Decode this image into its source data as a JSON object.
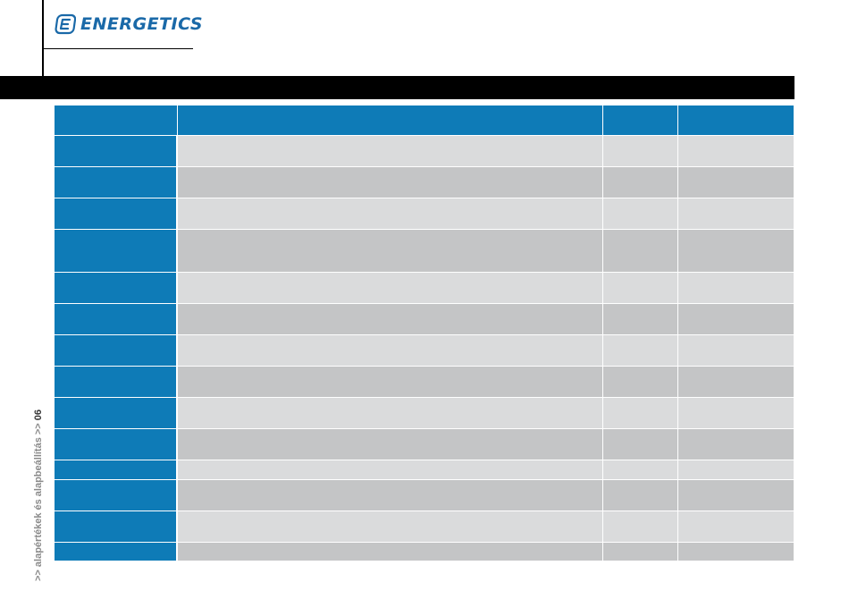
{
  "header": {
    "logo_text": "ENERGETICS",
    "colors": {
      "brand_blue": "#1a69a8",
      "table_blue": "#0e7bb7",
      "row_light": "#dadbdc",
      "row_dark": "#c4c5c6"
    },
    "logo_icon": "energetics-e-logo-icon"
  },
  "sidebar": {
    "prefix": ">> alapértékek és alapbeállítás",
    "separator": " >> ",
    "page_number": "06"
  },
  "table": {
    "columns": [
      "",
      "",
      "",
      ""
    ],
    "rows": [
      {
        "key": "",
        "description": "",
        "value": "",
        "unit": ""
      },
      {
        "key": "",
        "description": "",
        "value": "",
        "unit": ""
      },
      {
        "key": "",
        "description": "",
        "value": "",
        "unit": ""
      },
      {
        "key": "",
        "description": "",
        "value": "",
        "unit": ""
      },
      {
        "key": "",
        "description": "",
        "value": "",
        "unit": ""
      },
      {
        "key": "",
        "description": "",
        "value": "",
        "unit": ""
      },
      {
        "key": "",
        "description": "",
        "value": "",
        "unit": ""
      },
      {
        "key": "",
        "description": "",
        "value": "",
        "unit": ""
      },
      {
        "key": "",
        "description": "",
        "value": "",
        "unit": ""
      },
      {
        "key": "",
        "description": "",
        "value": "",
        "unit": ""
      },
      {
        "key": "",
        "description": "",
        "value": "",
        "unit": ""
      },
      {
        "key": "",
        "description": "",
        "value": "",
        "unit": ""
      },
      {
        "key": "",
        "description": "",
        "value": "",
        "unit": ""
      },
      {
        "key": "",
        "description": "",
        "value": "",
        "unit": ""
      }
    ]
  }
}
